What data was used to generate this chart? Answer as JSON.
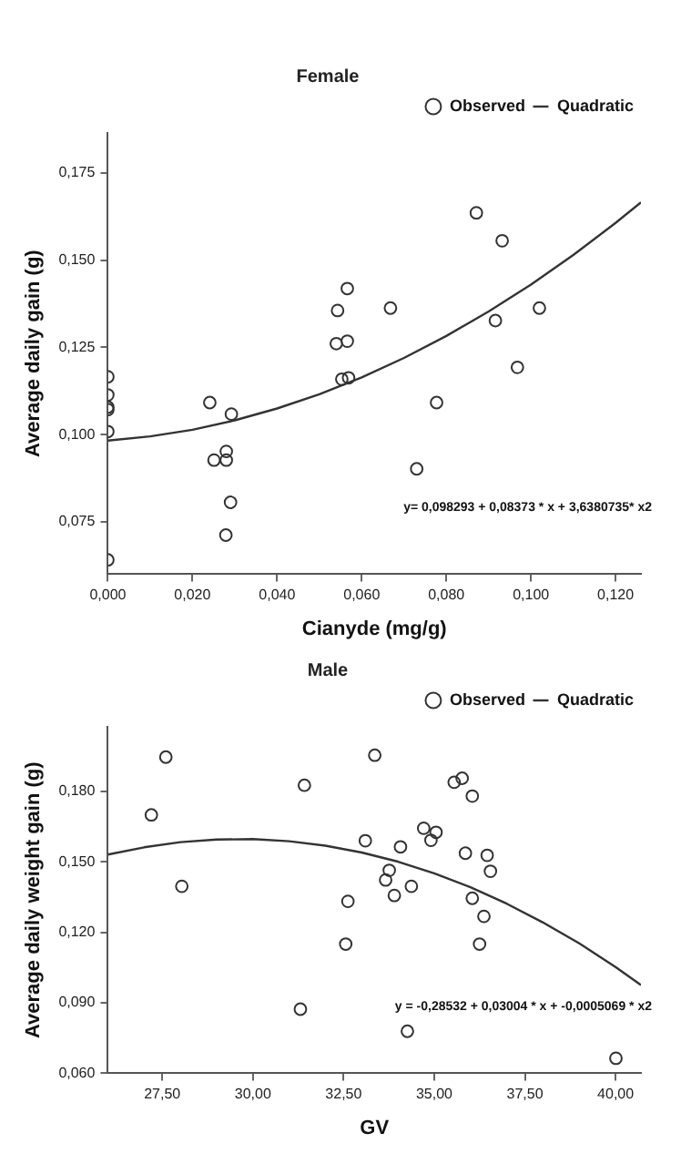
{
  "chart_data": [
    {
      "type": "scatter",
      "title": "Female",
      "xlabel": "Cianyde (mg/g)",
      "ylabel": "Average daily gain (g)",
      "legend": "top right",
      "grid": false,
      "marker": "circle",
      "xlim": [
        0,
        0.126
      ],
      "ylim": [
        0.06,
        0.1865
      ],
      "xticks": [
        {
          "value": 0,
          "label": "0,000"
        },
        {
          "value": 0.02,
          "label": "0,020"
        },
        {
          "value": 0.04,
          "label": "0,040"
        },
        {
          "value": 0.06,
          "label": "0,060"
        },
        {
          "value": 0.08,
          "label": "0,080"
        },
        {
          "value": 0.1,
          "label": "0,100"
        },
        {
          "value": 0.12,
          "label": "0,120"
        }
      ],
      "yticks": [
        {
          "value": 0.075,
          "label": "0,075"
        },
        {
          "value": 0.1,
          "label": "0,100"
        },
        {
          "value": 0.125,
          "label": "0,125"
        },
        {
          "value": 0.15,
          "label": "0,150"
        },
        {
          "value": 0.175,
          "label": "0,175"
        }
      ],
      "annotations": [
        "y= 0,098293 + 0,08373 * x + 3,6380735* x2"
      ],
      "series": [
        {
          "name": "Observed",
          "type": "scatter",
          "color": "#333333",
          "x": [
            0.0871,
            0.0932,
            0.0566,
            0.0543,
            0.0668,
            0.102,
            0.0916,
            0.054,
            0.0566,
            0.0553,
            0.0569,
            0,
            0,
            0,
            0,
            0,
            0.0241,
            0.0292,
            0.0251,
            0.028,
            0.028,
            0.029,
            0.0279,
            0,
            0.073,
            0.0777,
            0.0968
          ],
          "values": [
            0.1636,
            0.1556,
            0.1419,
            0.1356,
            0.1363,
            0.1363,
            0.1327,
            0.1261,
            0.1268,
            0.1159,
            0.1163,
            0.1166,
            0.1114,
            0.1079,
            0.1072,
            0.1009,
            0.1092,
            0.1059,
            0.0927,
            0.0952,
            0.0927,
            0.0806,
            0.0712,
            0.0641,
            0.0902,
            0.1092,
            0.1193
          ]
        },
        {
          "name": "Quadratic",
          "type": "line",
          "marker": "none",
          "color": "#333333",
          "x": [
            0,
            0.01,
            0.02,
            0.03,
            0.04,
            0.05,
            0.06,
            0.07,
            0.08,
            0.09,
            0.1,
            0.11,
            0.12,
            0.126
          ],
          "values": [
            0.0983,
            0.0995,
            0.1014,
            0.1041,
            0.1075,
            0.1116,
            0.1164,
            0.122,
            0.1283,
            0.1353,
            0.143,
            0.1515,
            0.1607,
            0.1666
          ]
        }
      ]
    },
    {
      "type": "scatter",
      "title": "Male",
      "xlabel": "GV",
      "ylabel": "Average daily weight gain (g)",
      "legend": "top right",
      "grid": false,
      "marker": "circle",
      "xlim": [
        26,
        40.7
      ],
      "ylim": [
        0.06,
        0.2075
      ],
      "xticks": [
        {
          "value": 27.5,
          "label": "27,50"
        },
        {
          "value": 30,
          "label": "30,00"
        },
        {
          "value": 32.5,
          "label": "32,50"
        },
        {
          "value": 35,
          "label": "35,00"
        },
        {
          "value": 37.5,
          "label": "37,50"
        },
        {
          "value": 40,
          "label": "40,00"
        }
      ],
      "yticks": [
        {
          "value": 0.06,
          "label": "0,060"
        },
        {
          "value": 0.09,
          "label": "0,090"
        },
        {
          "value": 0.12,
          "label": "0,120"
        },
        {
          "value": 0.15,
          "label": "0,150"
        },
        {
          "value": 0.18,
          "label": "0,180"
        }
      ],
      "annotations": [
        "y = -0,28532 + 0,03004 * x + -0,0005069 * x2"
      ],
      "series": [
        {
          "name": "Observed",
          "type": "scatter",
          "color": "#333333",
          "x": [
            27.6,
            33.36,
            31.42,
            35.55,
            35.77,
            36.05,
            27.2,
            34.71,
            35.05,
            34.91,
            33.1,
            34.07,
            35.86,
            36.46,
            33.76,
            36.55,
            28.04,
            33.66,
            34.37,
            33.9,
            36.05,
            32.62,
            36.37,
            32.56,
            36.25,
            31.31,
            34.26,
            40.01
          ],
          "values": [
            0.1946,
            0.1954,
            0.1826,
            0.1839,
            0.1856,
            0.178,
            0.17,
            0.1643,
            0.1626,
            0.1592,
            0.159,
            0.1564,
            0.1537,
            0.1528,
            0.1464,
            0.146,
            0.1396,
            0.1423,
            0.1396,
            0.1357,
            0.1345,
            0.1332,
            0.1268,
            0.115,
            0.115,
            0.0873,
            0.0779,
            0.0664
          ]
        },
        {
          "name": "Quadratic",
          "type": "line",
          "marker": "none",
          "color": "#333333",
          "x": [
            26,
            27,
            28,
            29,
            30,
            31,
            32,
            33,
            34,
            35,
            36,
            37,
            38,
            39,
            40,
            40.7
          ],
          "values": [
            0.1531,
            0.1562,
            0.1584,
            0.1595,
            0.1597,
            0.1588,
            0.1569,
            0.154,
            0.1501,
            0.1451,
            0.1392,
            0.1322,
            0.1242,
            0.1153,
            0.1052,
            0.0976
          ]
        }
      ]
    }
  ]
}
